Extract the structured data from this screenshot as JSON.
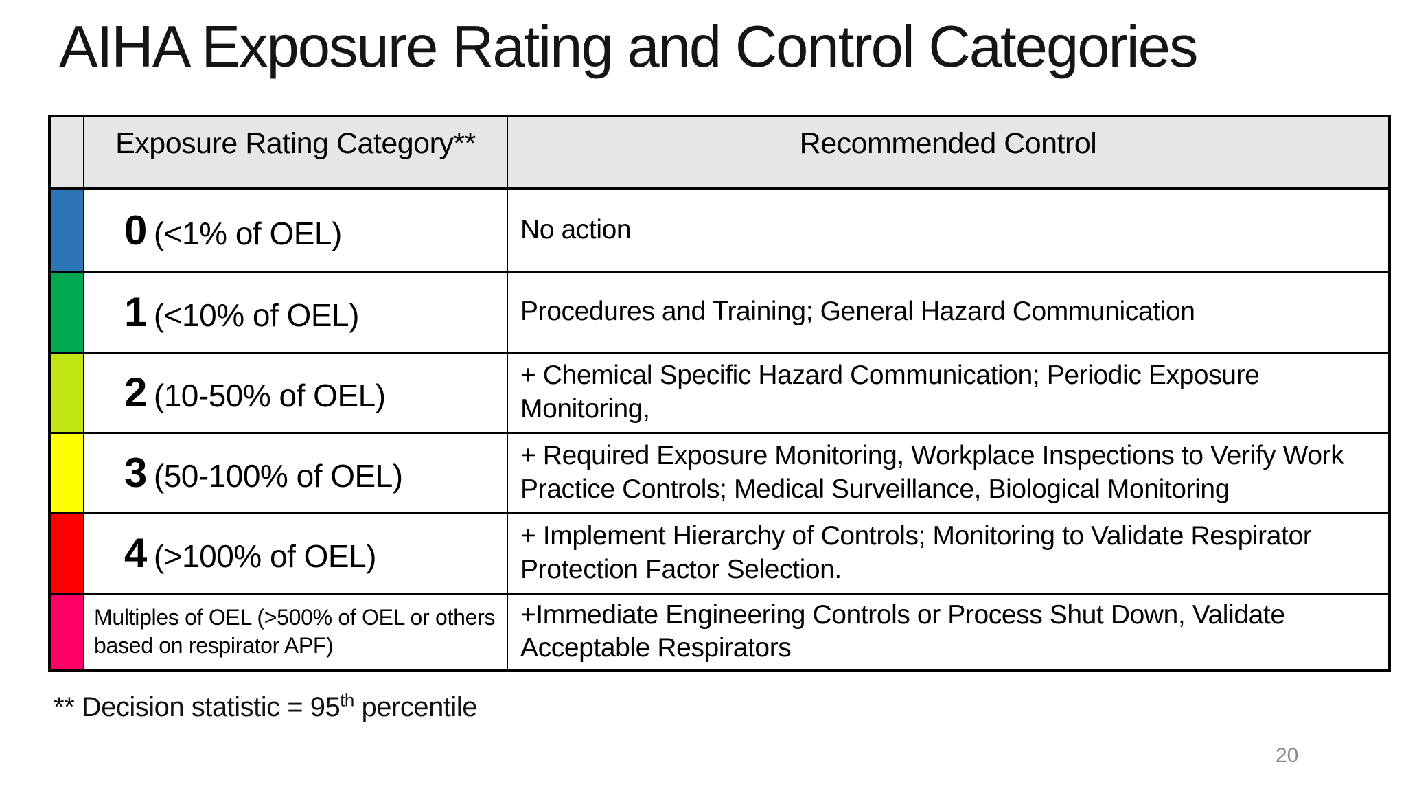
{
  "slide": {
    "title": "AIHA Exposure Rating and Control Categories",
    "footnote": {
      "prefix": "** Decision statistic = 95",
      "superscript": "th",
      "suffix": " percentile"
    },
    "page_number": "20"
  },
  "table": {
    "headers": {
      "category": "Exposure Rating Category**",
      "control": "Recommended Control"
    },
    "header_bg": "#e7e6e6",
    "rows": [
      {
        "swatch_color": "#2e75b6",
        "swatch_name": "blue",
        "rating": "0",
        "range": "(<1% of OEL)",
        "control": "No action"
      },
      {
        "swatch_color": "#00a950",
        "swatch_name": "green",
        "rating": "1",
        "range": "(<10% of OEL)",
        "control": "Procedures and Training; General Hazard Communication"
      },
      {
        "swatch_color": "#bfe513",
        "swatch_name": "yellow-green",
        "rating": "2",
        "range": "(10-50% of OEL)",
        "control": "+ Chemical Specific Hazard Communication; Periodic Exposure Monitoring,"
      },
      {
        "swatch_color": "#ffff00",
        "swatch_name": "yellow",
        "rating": "3",
        "range": "(50-100% of OEL)",
        "control": "+ Required Exposure Monitoring, Workplace Inspections to Verify Work Practice Controls; Medical Surveillance, Biological Monitoring"
      },
      {
        "swatch_color": "#ff0000",
        "swatch_name": "red",
        "rating": "4",
        "range": "(>100% of OEL)",
        "control": "+ Implement Hierarchy of Controls; Monitoring to Validate Respirator Protection Factor Selection."
      },
      {
        "swatch_color": "#ff0066",
        "swatch_name": "pink",
        "rating": "",
        "range": "Multiples of OEL (>500% of OEL or others based on respirator APF)",
        "control": "+Immediate Engineering Controls or Process Shut Down, Validate Acceptable Respirators"
      }
    ]
  }
}
